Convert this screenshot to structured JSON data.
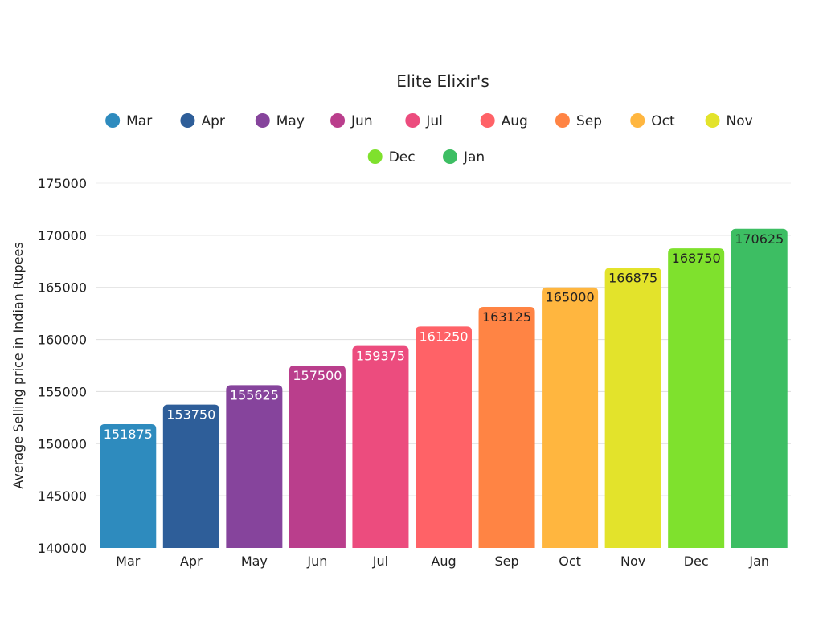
{
  "chart_data": {
    "type": "bar",
    "title": "Elite Elixir's",
    "xlabel": "",
    "ylabel": "Average Selling price in Indian Rupees",
    "categories": [
      "Mar",
      "Apr",
      "May",
      "Jun",
      "Jul",
      "Aug",
      "Sep",
      "Oct",
      "Nov",
      "Dec",
      "Jan"
    ],
    "values": [
      151875,
      153750,
      155625,
      157500,
      159375,
      161250,
      163125,
      165000,
      166875,
      168750,
      170625
    ],
    "colors": [
      "#2E8BBE",
      "#2E5E99",
      "#86449C",
      "#BA3E8C",
      "#EC4C7E",
      "#FF6267",
      "#FF8444",
      "#FFB63F",
      "#E3E32B",
      "#7FE12D",
      "#3DBE63"
    ],
    "label_colors": [
      "#ffffff",
      "#ffffff",
      "#ffffff",
      "#ffffff",
      "#ffffff",
      "#ffffff",
      "#222222",
      "#222222",
      "#222222",
      "#222222",
      "#222222"
    ],
    "ylim": [
      140000,
      175000
    ],
    "yticks": [
      140000,
      145000,
      150000,
      155000,
      160000,
      165000,
      170000,
      175000
    ],
    "grid": true,
    "legend_position": "top",
    "data_labels": "inside-top"
  }
}
